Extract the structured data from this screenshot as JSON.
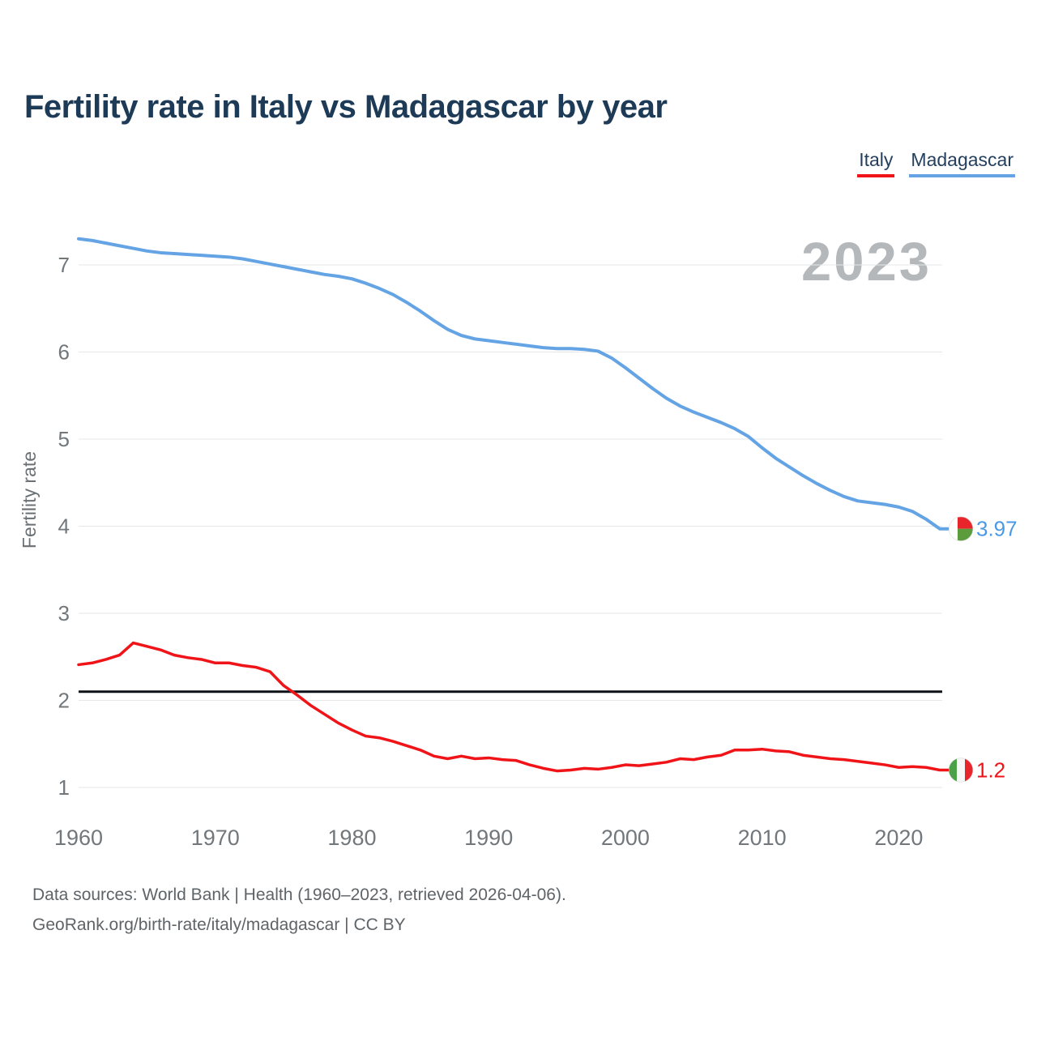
{
  "title": "Fertility rate in Italy vs Madagascar by year",
  "watermark": "2023",
  "legend": {
    "items": [
      {
        "label": "Italy",
        "color": "#f01318"
      },
      {
        "label": "Madagascar",
        "color": "#64a3e4"
      }
    ]
  },
  "footer": {
    "line1": "Data sources: World Bank | Health (1960–2023, retrieved 2026-04-06).",
    "line2": "GeoRank.org/birth-rate/italy/madagascar | CC BY"
  },
  "chart_data": {
    "type": "line",
    "title": "Fertility rate in Italy vs Madagascar by year",
    "xlabel": "",
    "ylabel": "Fertility rate",
    "x_ticks": [
      1960,
      1970,
      1980,
      1990,
      2000,
      2010,
      2020
    ],
    "y_ticks": [
      1,
      2,
      3,
      4,
      5,
      6,
      7
    ],
    "xlim": [
      1960,
      2023
    ],
    "ylim": [
      0.7,
      7.55
    ],
    "grid": "horizontal",
    "legend_position": "top-right",
    "watermark": "2023",
    "reference_line": {
      "value": 2.1,
      "color": "#0d1219"
    },
    "x": [
      1960,
      1961,
      1962,
      1963,
      1964,
      1965,
      1966,
      1967,
      1968,
      1969,
      1970,
      1971,
      1972,
      1973,
      1974,
      1975,
      1976,
      1977,
      1978,
      1979,
      1980,
      1981,
      1982,
      1983,
      1984,
      1985,
      1986,
      1987,
      1988,
      1989,
      1990,
      1991,
      1992,
      1993,
      1994,
      1995,
      1996,
      1997,
      1998,
      1999,
      2000,
      2001,
      2002,
      2003,
      2004,
      2005,
      2006,
      2007,
      2008,
      2009,
      2010,
      2011,
      2012,
      2013,
      2014,
      2015,
      2016,
      2017,
      2018,
      2019,
      2020,
      2021,
      2022,
      2023
    ],
    "series": [
      {
        "name": "Madagascar",
        "color": "#64a3e4",
        "line_width": 4,
        "end_label": "3.97",
        "end_label_color": "#4a99e8",
        "flag_icon": "madagascar-flag",
        "values": [
          7.3,
          7.28,
          7.25,
          7.22,
          7.19,
          7.16,
          7.14,
          7.13,
          7.12,
          7.11,
          7.1,
          7.09,
          7.07,
          7.04,
          7.01,
          6.98,
          6.95,
          6.92,
          6.89,
          6.87,
          6.84,
          6.79,
          6.73,
          6.66,
          6.57,
          6.47,
          6.36,
          6.26,
          6.19,
          6.15,
          6.13,
          6.11,
          6.09,
          6.07,
          6.05,
          6.04,
          6.04,
          6.03,
          6.01,
          5.93,
          5.82,
          5.7,
          5.58,
          5.47,
          5.38,
          5.31,
          5.25,
          5.19,
          5.12,
          5.03,
          4.9,
          4.78,
          4.68,
          4.58,
          4.49,
          4.41,
          4.34,
          4.29,
          4.27,
          4.25,
          4.22,
          4.17,
          4.08,
          3.97
        ]
      },
      {
        "name": "Italy",
        "color": "#f01318",
        "line_width": 3.5,
        "end_label": "1.2",
        "end_label_color": "#f01318",
        "flag_icon": "italy-flag",
        "values": [
          2.41,
          2.43,
          2.47,
          2.52,
          2.66,
          2.62,
          2.58,
          2.52,
          2.49,
          2.47,
          2.43,
          2.43,
          2.4,
          2.38,
          2.33,
          2.17,
          2.06,
          1.94,
          1.84,
          1.74,
          1.66,
          1.59,
          1.57,
          1.53,
          1.48,
          1.43,
          1.36,
          1.33,
          1.36,
          1.33,
          1.34,
          1.32,
          1.31,
          1.26,
          1.22,
          1.19,
          1.2,
          1.22,
          1.21,
          1.23,
          1.26,
          1.25,
          1.27,
          1.29,
          1.33,
          1.32,
          1.35,
          1.37,
          1.43,
          1.43,
          1.44,
          1.42,
          1.41,
          1.37,
          1.35,
          1.33,
          1.32,
          1.3,
          1.28,
          1.26,
          1.23,
          1.24,
          1.23,
          1.2
        ]
      }
    ]
  }
}
